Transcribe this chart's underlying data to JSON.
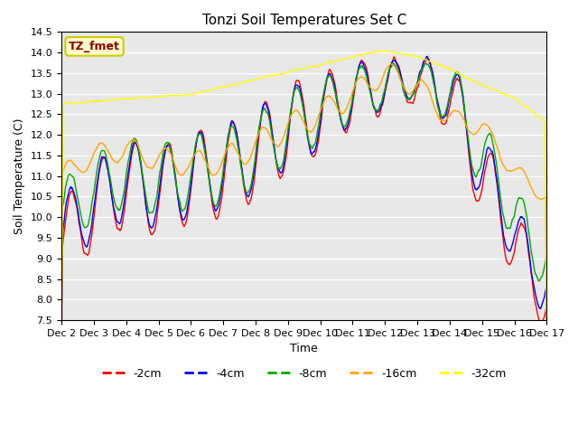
{
  "title": "Tonzi Soil Temperatures Set C",
  "xlabel": "Time",
  "ylabel": "Soil Temperature (C)",
  "ylim": [
    7.5,
    14.5
  ],
  "annotation": "TZ_fmet",
  "annotation_color": "#8B0000",
  "annotation_bg": "#FFFFCC",
  "plot_bg": "#E8E8E8",
  "legend_entries": [
    "-2cm",
    "-4cm",
    "-8cm",
    "-16cm",
    "-32cm"
  ],
  "line_colors": [
    "#FF0000",
    "#0000FF",
    "#00AA00",
    "#FFA500",
    "#FFFF00"
  ],
  "xtick_labels": [
    "Dec 2",
    "Dec 3",
    "Dec 4",
    "Dec 5",
    "Dec 6",
    "Dec 7",
    "Dec 8",
    "Dec 9",
    "Dec 10",
    "Dec 11",
    "Dec 12",
    "Dec 13",
    "Dec 14",
    "Dec 15",
    "Dec 16",
    "Dec 17"
  ],
  "n_points": 721
}
